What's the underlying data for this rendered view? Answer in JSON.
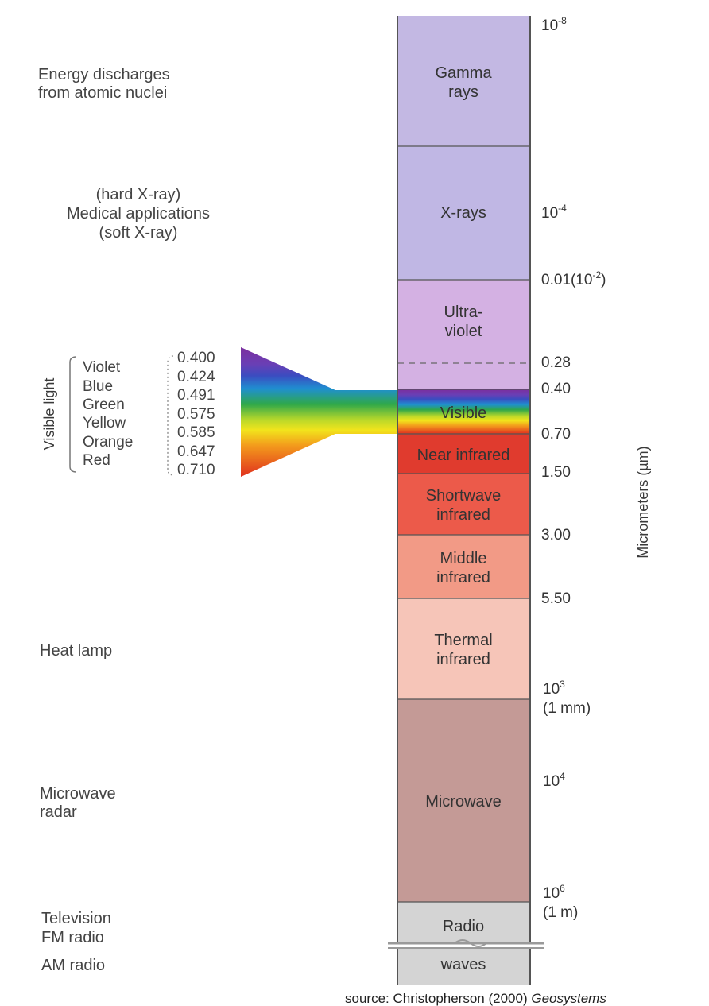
{
  "bands": [
    {
      "id": "gamma",
      "lines": [
        "Gamma",
        "rays"
      ],
      "color": "#c3b8e3"
    },
    {
      "id": "xray",
      "lines": [
        "X-rays"
      ],
      "color": "#c0b7e4"
    },
    {
      "id": "uv",
      "lines": [
        "Ultra-",
        "violet"
      ],
      "color": "#d4b1e3"
    },
    {
      "id": "visible",
      "lines": [
        "Visible"
      ],
      "color": ""
    },
    {
      "id": "nir",
      "lines": [
        "Near infrared"
      ],
      "color": "#e03b2e"
    },
    {
      "id": "swir",
      "lines": [
        "Shortwave",
        "infrared"
      ],
      "color": "#ec5a4a"
    },
    {
      "id": "mir",
      "lines": [
        "Middle",
        "infrared"
      ],
      "color": "#f29a86"
    },
    {
      "id": "tir",
      "lines": [
        "Thermal",
        "infrared"
      ],
      "color": "#f6c5b8"
    },
    {
      "id": "microwave",
      "lines": [
        "Microwave"
      ],
      "color": "#c49a96"
    },
    {
      "id": "radio",
      "lines": [
        "Radio"
      ],
      "color": "#d4d4d4"
    },
    {
      "id": "waves",
      "lines": [
        "waves"
      ],
      "color": "#d4d4d4"
    }
  ],
  "ticks": [
    {
      "base": "10",
      "sup": "-8",
      "note": ""
    },
    {
      "base": "10",
      "sup": "-4",
      "note": ""
    },
    {
      "base": "0.01(10",
      "sup": "-2",
      "tail": ")",
      "note": ""
    },
    {
      "base": "0.28",
      "sup": "",
      "note": ""
    },
    {
      "base": "0.40",
      "sup": "",
      "note": ""
    },
    {
      "base": "0.70",
      "sup": "",
      "note": ""
    },
    {
      "base": "1.50",
      "sup": "",
      "note": ""
    },
    {
      "base": "3.00",
      "sup": "",
      "note": ""
    },
    {
      "base": "5.50",
      "sup": "",
      "note": ""
    },
    {
      "base": "10",
      "sup": "3",
      "note": "(1 mm)"
    },
    {
      "base": "10",
      "sup": "4",
      "note": ""
    },
    {
      "base": "10",
      "sup": "6",
      "note": "(1 m)"
    }
  ],
  "axis_label": "Micrometers (µm)",
  "applications": [
    {
      "lines": [
        "Energy discharges",
        "from atomic nuclei"
      ]
    },
    {
      "lines": [
        "(hard X-ray)",
        "Medical applications",
        "(soft X-ray)"
      ]
    },
    {
      "lines": [
        "Heat lamp"
      ]
    },
    {
      "lines": [
        "Microwave",
        "radar"
      ]
    },
    {
      "lines": [
        "Television",
        "FM radio"
      ]
    },
    {
      "lines": [
        "AM radio"
      ]
    }
  ],
  "visible_light": {
    "title": "Visible light",
    "colors": [
      {
        "name": "Violet",
        "value": "0.400",
        "hex": "#7b2f9e"
      },
      {
        "name": "Blue",
        "value": "0.424",
        "hex": "#3b4cc0"
      },
      {
        "name": "Green",
        "value": "0.491",
        "hex": "#2fa84a"
      },
      {
        "name": "Yellow",
        "value": "0.575",
        "hex": "#f2e41c"
      },
      {
        "name": "Orange",
        "value": "0.585",
        "hex": "#f39a1c"
      },
      {
        "name": "Red",
        "value": "0.647",
        "hex": "#e0301e"
      }
    ],
    "last_value": "0.710"
  },
  "source": {
    "prefix": "source: Christopherson (2000) ",
    "title": "Geosystems"
  }
}
